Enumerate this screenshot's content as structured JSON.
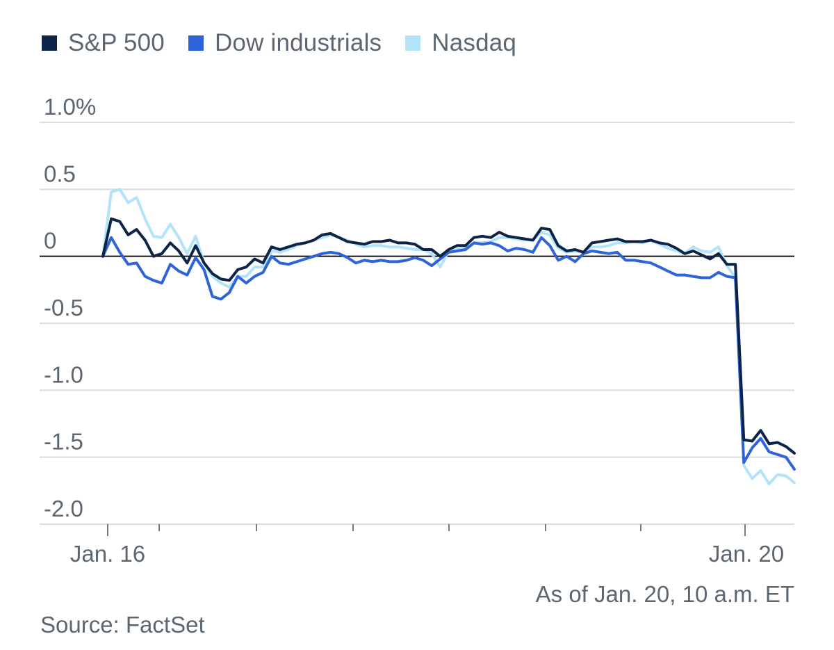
{
  "chart_data": {
    "type": "line",
    "ylim": [
      -2.0,
      1.0
    ],
    "y_ticks": [
      {
        "value": 1.0,
        "label": "1.0%"
      },
      {
        "value": 0.5,
        "label": "0.5"
      },
      {
        "value": 0,
        "label": "0"
      },
      {
        "value": -0.5,
        "label": "-0.5"
      },
      {
        "value": -1.0,
        "label": "-1.0"
      },
      {
        "value": -1.5,
        "label": "-1.5"
      },
      {
        "value": -2.0,
        "label": "-2.0"
      }
    ],
    "x_tick_labels": [
      "Jan. 16",
      "Jan. 20"
    ],
    "grid": true,
    "zero_line": true,
    "legend_position": "top-left",
    "series": [
      {
        "name": "S&P 500",
        "color": "#0d2347",
        "points": [
          [
            0,
            0.0
          ],
          [
            1,
            0.28
          ],
          [
            2,
            0.26
          ],
          [
            3,
            0.16
          ],
          [
            4,
            0.2
          ],
          [
            5,
            0.12
          ],
          [
            6,
            0.0
          ],
          [
            7,
            0.02
          ],
          [
            8,
            0.1
          ],
          [
            9,
            0.04
          ],
          [
            10,
            -0.05
          ],
          [
            11,
            0.08
          ],
          [
            12,
            -0.05
          ],
          [
            13,
            -0.13
          ],
          [
            14,
            -0.17
          ],
          [
            15,
            -0.18
          ],
          [
            16,
            -0.1
          ],
          [
            17,
            -0.08
          ],
          [
            18,
            -0.02
          ],
          [
            19,
            -0.05
          ],
          [
            20,
            0.07
          ],
          [
            21,
            0.05
          ],
          [
            22,
            0.07
          ],
          [
            23,
            0.09
          ],
          [
            24,
            0.1
          ],
          [
            25,
            0.12
          ],
          [
            26,
            0.16
          ],
          [
            27,
            0.17
          ],
          [
            28,
            0.14
          ],
          [
            29,
            0.11
          ],
          [
            30,
            0.1
          ],
          [
            31,
            0.09
          ],
          [
            32,
            0.11
          ],
          [
            33,
            0.11
          ],
          [
            34,
            0.12
          ],
          [
            35,
            0.1
          ],
          [
            36,
            0.1
          ],
          [
            37,
            0.09
          ],
          [
            38,
            0.05
          ],
          [
            39,
            0.05
          ],
          [
            40,
            0.0
          ],
          [
            41,
            0.05
          ],
          [
            42,
            0.08
          ],
          [
            43,
            0.08
          ],
          [
            44,
            0.14
          ],
          [
            45,
            0.15
          ],
          [
            46,
            0.14
          ],
          [
            47,
            0.18
          ],
          [
            48,
            0.15
          ],
          [
            49,
            0.14
          ],
          [
            50,
            0.13
          ],
          [
            51,
            0.12
          ],
          [
            52,
            0.21
          ],
          [
            53,
            0.2
          ],
          [
            54,
            0.08
          ],
          [
            55,
            0.04
          ],
          [
            56,
            0.05
          ],
          [
            57,
            0.03
          ],
          [
            58,
            0.1
          ],
          [
            59,
            0.11
          ],
          [
            60,
            0.12
          ],
          [
            61,
            0.13
          ],
          [
            62,
            0.11
          ],
          [
            63,
            0.11
          ],
          [
            64,
            0.11
          ],
          [
            65,
            0.12
          ],
          [
            66,
            0.1
          ],
          [
            67,
            0.09
          ],
          [
            68,
            0.06
          ],
          [
            69,
            0.02
          ],
          [
            70,
            0.04
          ],
          [
            71,
            0.01
          ],
          [
            72,
            -0.02
          ],
          [
            73,
            0.02
          ],
          [
            74,
            -0.06
          ],
          [
            75,
            -0.06
          ],
          [
            76,
            -1.37
          ],
          [
            77,
            -1.38
          ],
          [
            78,
            -1.3
          ],
          [
            79,
            -1.4
          ],
          [
            80,
            -1.39
          ],
          [
            81,
            -1.42
          ],
          [
            82,
            -1.47
          ]
        ]
      },
      {
        "name": "Dow industrials",
        "color": "#2f63d8",
        "points": [
          [
            0,
            0.0
          ],
          [
            1,
            0.14
          ],
          [
            2,
            0.03
          ],
          [
            3,
            -0.06
          ],
          [
            4,
            -0.05
          ],
          [
            5,
            -0.15
          ],
          [
            6,
            -0.18
          ],
          [
            7,
            -0.2
          ],
          [
            8,
            -0.06
          ],
          [
            9,
            -0.11
          ],
          [
            10,
            -0.14
          ],
          [
            11,
            -0.01
          ],
          [
            12,
            -0.1
          ],
          [
            13,
            -0.3
          ],
          [
            14,
            -0.32
          ],
          [
            15,
            -0.27
          ],
          [
            16,
            -0.15
          ],
          [
            17,
            -0.2
          ],
          [
            18,
            -0.15
          ],
          [
            19,
            -0.12
          ],
          [
            20,
            0.0
          ],
          [
            21,
            -0.05
          ],
          [
            22,
            -0.06
          ],
          [
            23,
            -0.04
          ],
          [
            24,
            -0.02
          ],
          [
            25,
            0.0
          ],
          [
            26,
            0.02
          ],
          [
            27,
            0.03
          ],
          [
            28,
            0.02
          ],
          [
            29,
            -0.01
          ],
          [
            30,
            -0.05
          ],
          [
            31,
            -0.03
          ],
          [
            32,
            -0.04
          ],
          [
            33,
            -0.03
          ],
          [
            34,
            -0.04
          ],
          [
            35,
            -0.04
          ],
          [
            36,
            -0.03
          ],
          [
            37,
            -0.01
          ],
          [
            38,
            -0.03
          ],
          [
            39,
            -0.07
          ],
          [
            40,
            -0.02
          ],
          [
            41,
            0.03
          ],
          [
            42,
            0.04
          ],
          [
            43,
            0.05
          ],
          [
            44,
            0.1
          ],
          [
            45,
            0.09
          ],
          [
            46,
            0.1
          ],
          [
            47,
            0.08
          ],
          [
            48,
            0.04
          ],
          [
            49,
            0.06
          ],
          [
            50,
            0.05
          ],
          [
            51,
            0.03
          ],
          [
            52,
            0.14
          ],
          [
            53,
            0.08
          ],
          [
            54,
            -0.03
          ],
          [
            55,
            0.0
          ],
          [
            56,
            -0.04
          ],
          [
            57,
            0.02
          ],
          [
            58,
            0.04
          ],
          [
            59,
            0.03
          ],
          [
            60,
            0.02
          ],
          [
            61,
            0.03
          ],
          [
            62,
            -0.03
          ],
          [
            63,
            -0.03
          ],
          [
            64,
            -0.04
          ],
          [
            65,
            -0.05
          ],
          [
            66,
            -0.08
          ],
          [
            67,
            -0.11
          ],
          [
            68,
            -0.14
          ],
          [
            69,
            -0.14
          ],
          [
            70,
            -0.15
          ],
          [
            71,
            -0.16
          ],
          [
            72,
            -0.16
          ],
          [
            73,
            -0.12
          ],
          [
            74,
            -0.15
          ],
          [
            75,
            -0.16
          ],
          [
            76,
            -1.54
          ],
          [
            77,
            -1.43
          ],
          [
            78,
            -1.36
          ],
          [
            79,
            -1.46
          ],
          [
            80,
            -1.48
          ],
          [
            81,
            -1.5
          ],
          [
            82,
            -1.59
          ]
        ]
      },
      {
        "name": "Nasdaq",
        "color": "#b3e3f8",
        "points": [
          [
            0,
            0.0
          ],
          [
            1,
            0.48
          ],
          [
            2,
            0.5
          ],
          [
            3,
            0.4
          ],
          [
            4,
            0.44
          ],
          [
            5,
            0.28
          ],
          [
            6,
            0.15
          ],
          [
            7,
            0.14
          ],
          [
            8,
            0.24
          ],
          [
            9,
            0.14
          ],
          [
            10,
            0.02
          ],
          [
            11,
            0.15
          ],
          [
            12,
            -0.05
          ],
          [
            13,
            -0.15
          ],
          [
            14,
            -0.2
          ],
          [
            15,
            -0.23
          ],
          [
            16,
            -0.15
          ],
          [
            17,
            -0.15
          ],
          [
            18,
            -0.08
          ],
          [
            19,
            -0.08
          ],
          [
            20,
            0.04
          ],
          [
            21,
            0.03
          ],
          [
            22,
            0.05
          ],
          [
            23,
            0.08
          ],
          [
            24,
            0.1
          ],
          [
            25,
            0.12
          ],
          [
            26,
            0.14
          ],
          [
            27,
            0.16
          ],
          [
            28,
            0.14
          ],
          [
            29,
            0.12
          ],
          [
            30,
            0.09
          ],
          [
            31,
            0.07
          ],
          [
            32,
            0.08
          ],
          [
            33,
            0.08
          ],
          [
            34,
            0.07
          ],
          [
            35,
            0.07
          ],
          [
            36,
            0.06
          ],
          [
            37,
            0.05
          ],
          [
            38,
            0.05
          ],
          [
            39,
            0.02
          ],
          [
            40,
            -0.08
          ],
          [
            41,
            0.04
          ],
          [
            42,
            0.05
          ],
          [
            43,
            0.06
          ],
          [
            44,
            0.1
          ],
          [
            45,
            0.1
          ],
          [
            46,
            0.11
          ],
          [
            47,
            0.14
          ],
          [
            48,
            0.14
          ],
          [
            49,
            0.13
          ],
          [
            50,
            0.12
          ],
          [
            51,
            0.12
          ],
          [
            52,
            0.18
          ],
          [
            53,
            0.16
          ],
          [
            54,
            0.06
          ],
          [
            55,
            0.03
          ],
          [
            56,
            0.04
          ],
          [
            57,
            0.03
          ],
          [
            58,
            0.07
          ],
          [
            59,
            0.07
          ],
          [
            60,
            0.08
          ],
          [
            61,
            0.1
          ],
          [
            62,
            0.1
          ],
          [
            63,
            0.11
          ],
          [
            64,
            0.1
          ],
          [
            65,
            0.12
          ],
          [
            66,
            0.09
          ],
          [
            67,
            0.06
          ],
          [
            68,
            0.04
          ],
          [
            69,
            0.02
          ],
          [
            70,
            0.07
          ],
          [
            71,
            0.04
          ],
          [
            72,
            0.03
          ],
          [
            73,
            0.07
          ],
          [
            74,
            -0.07
          ],
          [
            75,
            -0.16
          ],
          [
            76,
            -1.56
          ],
          [
            77,
            -1.66
          ],
          [
            78,
            -1.6
          ],
          [
            79,
            -1.7
          ],
          [
            80,
            -1.63
          ],
          [
            81,
            -1.64
          ],
          [
            82,
            -1.69
          ]
        ]
      }
    ]
  },
  "notes": {
    "as_of": "As of Jan. 20, 10 a.m. ET",
    "source": "Source: FactSet"
  }
}
